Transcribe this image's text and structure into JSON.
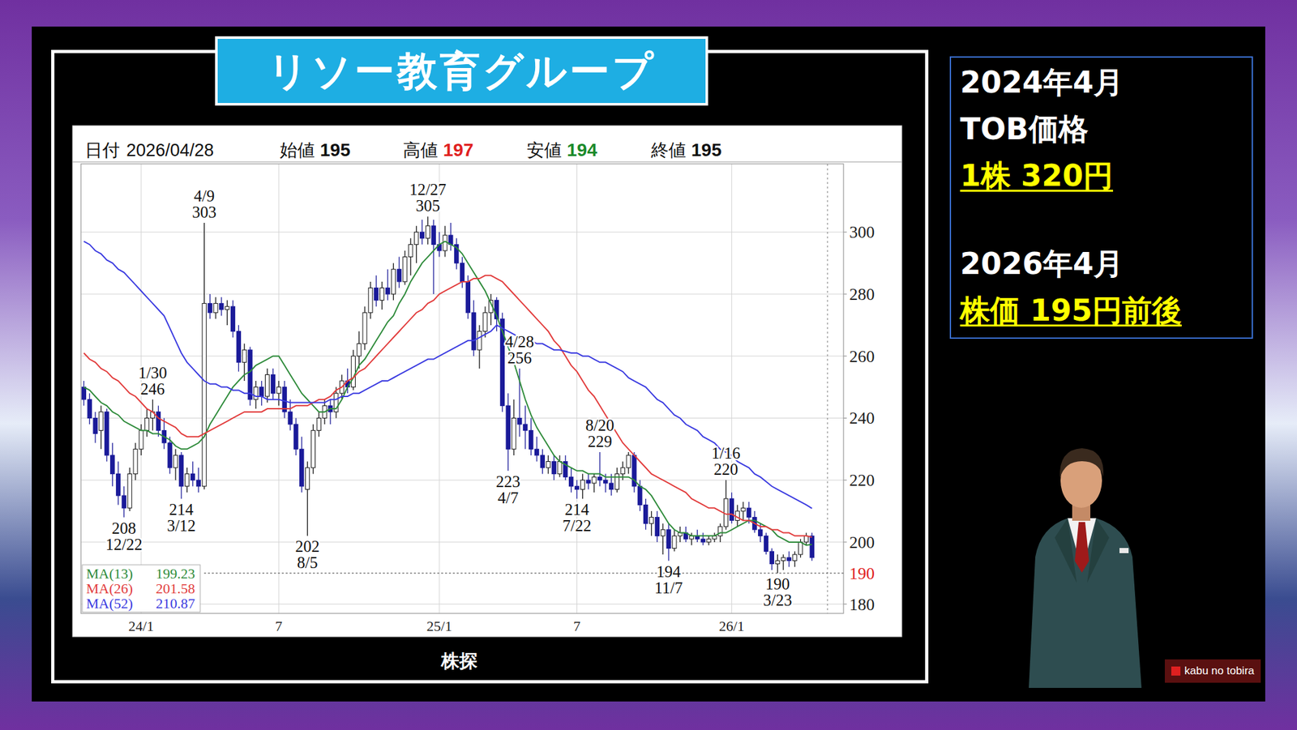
{
  "title": "リソー教育グループ",
  "source": "株探",
  "logo": "kabu no tobira",
  "side_panel": {
    "tob": {
      "date": "2024年4月",
      "label": "TOB価格",
      "value": "1株 320円"
    },
    "price": {
      "date": "2026年4月",
      "value": "株価 195円前後"
    }
  },
  "chart_data": {
    "type": "candlestick",
    "header": {
      "date_label": "日付",
      "date": "2026/04/28",
      "fields": [
        {
          "label": "始値",
          "value": 195
        },
        {
          "label": "高値",
          "value": 197,
          "color": "#e02020"
        },
        {
          "label": "安値",
          "value": 194,
          "color": "#1a8a2a"
        },
        {
          "label": "終値",
          "value": 195
        }
      ]
    },
    "categories": [
      null,
      null,
      null,
      null,
      null,
      null,
      null,
      null,
      null,
      null,
      "24/1",
      null,
      null,
      null,
      null,
      null,
      null,
      null,
      null,
      null,
      null,
      null,
      null,
      null,
      null,
      null,
      null,
      null,
      null,
      null,
      null,
      null,
      null,
      null,
      "7",
      null,
      null,
      null,
      null,
      null,
      null,
      null,
      null,
      null,
      null,
      null,
      null,
      null,
      null,
      null,
      null,
      null,
      null,
      null,
      null,
      null,
      null,
      null,
      null,
      null,
      null,
      null,
      "25/1",
      null,
      null,
      null,
      null,
      null,
      null,
      null,
      null,
      null,
      null,
      null,
      null,
      null,
      null,
      null,
      null,
      null,
      null,
      null,
      null,
      null,
      null,
      null,
      "7",
      null,
      null,
      null,
      null,
      null,
      null,
      null,
      null,
      null,
      null,
      null,
      null,
      null,
      null,
      null,
      null,
      null,
      null,
      null,
      null,
      null,
      null,
      null,
      null,
      null,
      null,
      "26/1",
      null,
      null,
      null,
      null,
      null,
      null,
      null,
      null,
      null,
      null,
      null,
      null,
      null,
      null
    ],
    "series": [
      {
        "type": "candlestick",
        "open": [
          250,
          246,
          240,
          236,
          242,
          228,
          222,
          215,
          211,
          222,
          230,
          236,
          240,
          242,
          236,
          232,
          224,
          228,
          218,
          222,
          220,
          218,
          277,
          274,
          277,
          275,
          276,
          268,
          258,
          262,
          246,
          250,
          247,
          254,
          248,
          250,
          242,
          238,
          230,
          217,
          224,
          236,
          240,
          244,
          242,
          248,
          252,
          250,
          260,
          264,
          274,
          282,
          278,
          282,
          280,
          288,
          284,
          292,
          296,
          300,
          298,
          302,
          296,
          294,
          299,
          296,
          290,
          284,
          274,
          262,
          268,
          274,
          278,
          272,
          244,
          230,
          240,
          238,
          236,
          230,
          228,
          224,
          226,
          222,
          226,
          221,
          218,
          217,
          220,
          219,
          221,
          220,
          219,
          217,
          222,
          224,
          228,
          218,
          212,
          206,
          208,
          202,
          204,
          198,
          202,
          203,
          201,
          202,
          201,
          200,
          201,
          202,
          205,
          214,
          207,
          210,
          211,
          208,
          204,
          202,
          197,
          193,
          194,
          195,
          194,
          196,
          200,
          202
        ],
        "high": [
          252,
          248,
          242,
          244,
          243,
          232,
          226,
          218,
          224,
          232,
          238,
          243,
          246,
          244,
          240,
          234,
          230,
          229,
          224,
          226,
          224,
          303,
          280,
          279,
          279,
          278,
          278,
          270,
          264,
          263,
          252,
          252,
          256,
          256,
          252,
          252,
          246,
          240,
          234,
          226,
          238,
          242,
          246,
          246,
          250,
          254,
          256,
          262,
          268,
          276,
          284,
          286,
          284,
          288,
          290,
          292,
          294,
          298,
          302,
          304,
          305,
          304,
          300,
          302,
          303,
          298,
          292,
          286,
          278,
          270,
          276,
          280,
          279,
          274,
          248,
          246,
          256,
          244,
          240,
          234,
          230,
          228,
          228,
          228,
          228,
          224,
          220,
          222,
          222,
          222,
          229,
          222,
          222,
          224,
          226,
          229,
          229,
          220,
          214,
          210,
          210,
          206,
          206,
          204,
          205,
          205,
          203,
          204,
          203,
          202,
          203,
          206,
          220,
          216,
          212,
          213,
          213,
          210,
          206,
          203,
          198,
          196,
          196,
          197,
          197,
          201,
          203,
          203
        ],
        "low": [
          244,
          238,
          232,
          230,
          226,
          218,
          212,
          208,
          210,
          220,
          228,
          234,
          236,
          234,
          230,
          222,
          220,
          214,
          216,
          218,
          216,
          217,
          272,
          272,
          273,
          270,
          266,
          255,
          252,
          244,
          243,
          244,
          245,
          246,
          244,
          240,
          236,
          228,
          216,
          202,
          222,
          234,
          238,
          238,
          240,
          246,
          248,
          249,
          256,
          262,
          272,
          276,
          275,
          278,
          278,
          282,
          283,
          286,
          290,
          296,
          296,
          280,
          292,
          292,
          294,
          288,
          282,
          272,
          260,
          256,
          266,
          270,
          268,
          242,
          223,
          228,
          234,
          230,
          228,
          226,
          222,
          222,
          220,
          221,
          220,
          216,
          214,
          214,
          217,
          216,
          218,
          216,
          215,
          216,
          220,
          222,
          216,
          210,
          204,
          202,
          200,
          196,
          194,
          197,
          200,
          200,
          199,
          200,
          199,
          199,
          200,
          200,
          204,
          206,
          205,
          207,
          206,
          203,
          200,
          196,
          191,
          190,
          191,
          192,
          192,
          195,
          199,
          194
        ],
        "close": [
          246,
          240,
          235,
          242,
          228,
          222,
          215,
          211,
          222,
          230,
          236,
          240,
          242,
          236,
          232,
          224,
          228,
          218,
          222,
          220,
          218,
          277,
          274,
          277,
          275,
          276,
          268,
          258,
          262,
          246,
          250,
          247,
          254,
          248,
          250,
          242,
          238,
          230,
          218,
          224,
          236,
          240,
          244,
          242,
          248,
          252,
          250,
          260,
          264,
          274,
          282,
          278,
          282,
          280,
          288,
          284,
          292,
          296,
          300,
          298,
          302,
          296,
          294,
          299,
          296,
          290,
          284,
          274,
          262,
          268,
          274,
          278,
          272,
          244,
          230,
          240,
          238,
          236,
          230,
          228,
          224,
          226,
          222,
          226,
          221,
          218,
          217,
          220,
          219,
          221,
          220,
          219,
          217,
          222,
          224,
          228,
          218,
          212,
          206,
          208,
          202,
          204,
          198,
          202,
          203,
          201,
          202,
          201,
          200,
          201,
          202,
          205,
          214,
          207,
          210,
          211,
          208,
          204,
          202,
          197,
          193,
          194,
          195,
          194,
          196,
          200,
          202,
          195
        ]
      },
      {
        "name": "MA(13)",
        "type": "line",
        "color": "#2e8b3a",
        "values": [
          250,
          249,
          247,
          245,
          244,
          242,
          241,
          239,
          238,
          237,
          236,
          236,
          235,
          235,
          234,
          233,
          231,
          230,
          230,
          231,
          232,
          234,
          238,
          241,
          244,
          247,
          250,
          252,
          254,
          255,
          257,
          258,
          259,
          260,
          260,
          257,
          254,
          251,
          248,
          246,
          244,
          242,
          242,
          243,
          243,
          246,
          250,
          253,
          257,
          259,
          262,
          265,
          268,
          271,
          273,
          277,
          280,
          284,
          287,
          290,
          292,
          294,
          296,
          297,
          296,
          295,
          293,
          290,
          287,
          284,
          281,
          277,
          273,
          268,
          263,
          258,
          252,
          246,
          241,
          237,
          234,
          231,
          228,
          226,
          225,
          224,
          223,
          223,
          222,
          222,
          222,
          221,
          221,
          221,
          221,
          221,
          220,
          218,
          217,
          215,
          212,
          209,
          206,
          204,
          203,
          203,
          202,
          202,
          202,
          202,
          202,
          203,
          203,
          204,
          205,
          206,
          207,
          207,
          206,
          205,
          204,
          202,
          201,
          200,
          200,
          200,
          199,
          199.23
        ]
      },
      {
        "name": "MA(26)",
        "type": "line",
        "color": "#e23c3c",
        "values": [
          261,
          259,
          258,
          256,
          255,
          253,
          252,
          250,
          248,
          247,
          245,
          243,
          242,
          240,
          239,
          238,
          237,
          235,
          234,
          234,
          234,
          235,
          236,
          237,
          238,
          239,
          240,
          241,
          242,
          242,
          242,
          242,
          243,
          243,
          243,
          243,
          243,
          244,
          244,
          244,
          245,
          246,
          246,
          247,
          249,
          250,
          252,
          253,
          255,
          256,
          258,
          260,
          262,
          264,
          266,
          268,
          270,
          272,
          274,
          275,
          277,
          278,
          280,
          281,
          282,
          283,
          284,
          284,
          285,
          285,
          286,
          286,
          285,
          284,
          282,
          280,
          278,
          276,
          274,
          272,
          270,
          268,
          265,
          263,
          260,
          257,
          255,
          252,
          249,
          247,
          244,
          241,
          238,
          235,
          232,
          230,
          228,
          226,
          224,
          222,
          221,
          220,
          219,
          218,
          217,
          216,
          214,
          213,
          212,
          211,
          211,
          210,
          209,
          209,
          208,
          207,
          207,
          206,
          205,
          205,
          204,
          204,
          203,
          203,
          202,
          202,
          202,
          201.58
        ]
      },
      {
        "name": "MA(52)",
        "type": "line",
        "color": "#3a3ae0",
        "values": [
          297,
          296,
          294,
          293,
          291,
          290,
          288,
          287,
          285,
          283,
          281,
          279,
          277,
          275,
          273,
          269,
          265,
          261,
          258,
          256,
          254,
          252,
          251,
          251,
          250,
          250,
          249,
          249,
          248,
          248,
          247,
          247,
          246,
          246,
          246,
          245.5,
          245,
          245,
          245,
          245,
          245,
          245,
          245,
          246,
          246,
          247,
          247,
          248,
          248,
          249,
          250,
          251,
          252,
          252,
          253,
          254,
          255,
          256,
          257,
          258,
          259,
          259,
          260,
          261,
          262,
          263,
          264,
          265,
          265,
          266,
          267,
          268,
          270,
          269,
          268,
          267,
          266,
          265,
          265,
          264,
          264,
          263,
          262,
          262,
          261.5,
          261,
          261,
          260,
          260,
          259,
          258,
          258,
          257,
          256,
          255,
          253,
          252,
          251,
          250,
          248,
          246,
          245,
          243,
          241,
          240,
          238,
          237,
          236,
          234,
          233,
          232,
          230,
          229,
          228,
          226,
          225,
          224,
          222,
          221,
          219.5,
          218,
          217,
          216,
          215,
          214,
          213,
          212,
          210.87
        ]
      }
    ],
    "ylim": [
      177,
      322
    ],
    "yticks": [
      180,
      200,
      220,
      240,
      260,
      280,
      300
    ],
    "grid": true,
    "legend": "bottom-left",
    "reference_line": 190,
    "annotations": [
      {
        "date": "12/22",
        "value": 208,
        "index": 7,
        "position": "below"
      },
      {
        "date": "1/30",
        "value": 246,
        "index": 12,
        "position": "above"
      },
      {
        "date": "3/12",
        "value": 214,
        "index": 17,
        "position": "below"
      },
      {
        "date": "4/9",
        "value": 303,
        "index": 21,
        "position": "above"
      },
      {
        "date": "8/5",
        "value": 202,
        "index": 39,
        "position": "below"
      },
      {
        "date": "12/27",
        "value": 305,
        "index": 60,
        "position": "above"
      },
      {
        "date": "4/7",
        "value": 223,
        "index": 74,
        "position": "below"
      },
      {
        "date": "4/28",
        "value": 256,
        "index": 76,
        "position": "above"
      },
      {
        "date": "7/22",
        "value": 214,
        "index": 86,
        "position": "below"
      },
      {
        "date": "8/20",
        "value": 229,
        "index": 90,
        "position": "above"
      },
      {
        "date": "11/7",
        "value": 194,
        "index": 102,
        "position": "below"
      },
      {
        "date": "1/16",
        "value": 220,
        "index": 112,
        "position": "above"
      },
      {
        "date": "3/23",
        "value": 190,
        "index": 121,
        "position": "below"
      }
    ]
  }
}
